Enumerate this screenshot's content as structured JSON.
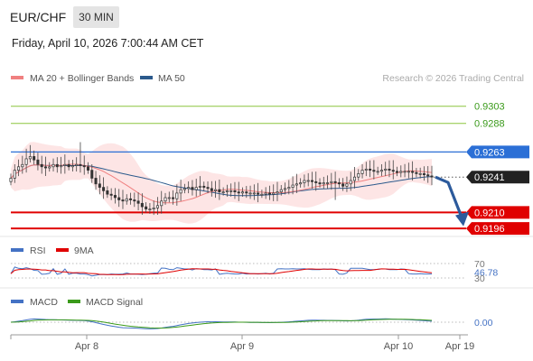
{
  "header": {
    "symbol": "EUR/CHF",
    "timeframe": "30 MIN",
    "datetime": "Friday, April 10, 2026 7:00:44 AM CET"
  },
  "legend": {
    "ma20_label": "MA 20 + Bollinger Bands",
    "ma50_label": "MA 50",
    "credit": "Research © 2026 Trading Central",
    "colors": {
      "ma20": "#f08080",
      "ma50": "#2c5a8c",
      "band": "#fde0e0"
    }
  },
  "chart_data": [
    {
      "type": "line",
      "panel": "price",
      "ylim": [
        0.9189,
        0.9317
      ],
      "x_categories": [
        "Apr 8",
        "Apr 9",
        "Apr 10",
        "Apr 19"
      ],
      "levels": [
        {
          "value": 0.9303,
          "label": "0.9303",
          "kind": "resistance",
          "color": "#8cc63f"
        },
        {
          "value": 0.9288,
          "label": "0.9288",
          "kind": "resistance",
          "color": "#8cc63f"
        },
        {
          "value": 0.9263,
          "label": "0.9263",
          "kind": "pivot",
          "color": "#2b6fd6"
        },
        {
          "value": 0.9241,
          "label": "0.9241",
          "kind": "last-price",
          "color": "#222222"
        },
        {
          "value": 0.921,
          "label": "0.9210",
          "kind": "target",
          "color": "#e00000"
        },
        {
          "value": 0.9196,
          "label": "0.9196",
          "kind": "target",
          "color": "#e00000"
        }
      ],
      "close_series": [
        0.924,
        0.9247,
        0.925,
        0.9252,
        0.9257,
        0.9259,
        0.9256,
        0.9252,
        0.925,
        0.9249,
        0.925,
        0.9252,
        0.925,
        0.9251,
        0.9252,
        0.925,
        0.9251,
        0.9252,
        0.9251,
        0.925,
        0.9247,
        0.924,
        0.9235,
        0.9232,
        0.9229,
        0.9226,
        0.9225,
        0.9223,
        0.9221,
        0.922,
        0.9222,
        0.9221,
        0.922,
        0.9218,
        0.9215,
        0.9213,
        0.9213,
        0.9214,
        0.9216,
        0.922,
        0.9223,
        0.9223,
        0.9222,
        0.9227,
        0.923,
        0.9231,
        0.9232,
        0.923,
        0.9232,
        0.9233,
        0.9232,
        0.9231,
        0.9229,
        0.923,
        0.9228,
        0.9228,
        0.9229,
        0.9229,
        0.9228,
        0.9227,
        0.9228,
        0.9227,
        0.9227,
        0.9227,
        0.9226,
        0.9226,
        0.9227,
        0.9226,
        0.9227,
        0.9228,
        0.923,
        0.9231,
        0.9232,
        0.9234,
        0.9235,
        0.9236,
        0.9238,
        0.9238,
        0.9237,
        0.9236,
        0.9235,
        0.9236,
        0.9236,
        0.9237,
        0.9236,
        0.9235,
        0.9233,
        0.9235,
        0.9238,
        0.9241,
        0.9244,
        0.9247,
        0.9248,
        0.9247,
        0.9246,
        0.9246,
        0.9247,
        0.9248,
        0.9247,
        0.9246,
        0.9245,
        0.9246,
        0.9246,
        0.9246,
        0.9245,
        0.9244,
        0.9244,
        0.9243,
        0.9242,
        0.9241
      ]
    },
    {
      "type": "line",
      "panel": "rsi",
      "series": [
        {
          "name": "RSI",
          "color": "#4472c4"
        },
        {
          "name": "9MA",
          "color": "#e00000"
        }
      ],
      "levels": [
        {
          "value": 70,
          "label": "70"
        },
        {
          "value": 46.78,
          "label": "46.78",
          "kind": "last-value"
        },
        {
          "value": 30,
          "label": "30"
        }
      ],
      "ylim": [
        10,
        90
      ]
    },
    {
      "type": "line",
      "panel": "macd",
      "series": [
        {
          "name": "MACD",
          "color": "#4472c4"
        },
        {
          "name": "MACD Signal",
          "color": "#3a9a1a"
        }
      ],
      "levels": [
        {
          "value": 0.0,
          "label": "0.00"
        }
      ]
    }
  ],
  "rsi_legend": {
    "rsi": "RSI",
    "ma": "9MA"
  },
  "macd_legend": {
    "macd": "MACD",
    "signal": "MACD Signal"
  }
}
